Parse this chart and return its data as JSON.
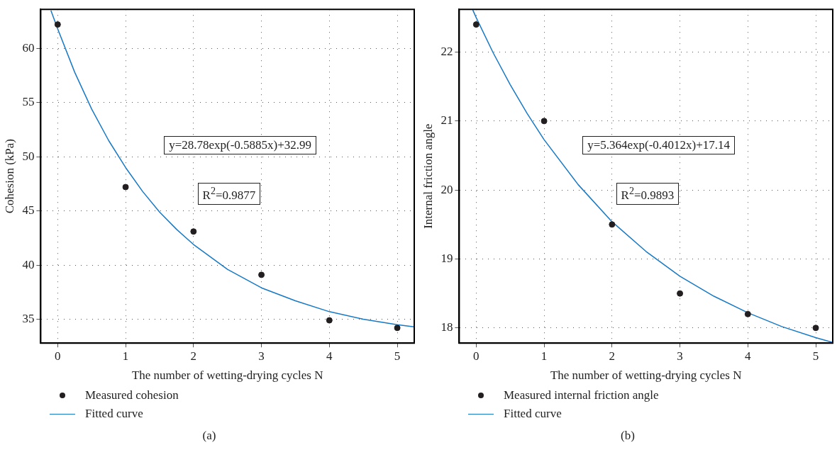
{
  "chart_data": [
    {
      "type": "scatter",
      "xlabel": "The number of wetting-drying cycles N",
      "ylabel": "Cohesion (kPa)",
      "xlim": [
        -0.25,
        5.25
      ],
      "xticks": [
        0,
        1,
        2,
        3,
        4,
        5
      ],
      "ylim": [
        32.8,
        63.6
      ],
      "yticks": [
        35,
        40,
        45,
        50,
        55,
        60
      ],
      "grid": true,
      "legend": "bottom",
      "annotations": [
        "y=28.78exp(-0.5885x)+32.99",
        "R$^{2}$=0.9877",
        "(a)"
      ],
      "series": [
        {
          "name": "Measured cohesion",
          "type": "scatter",
          "marker": "circle",
          "color": "#231f20",
          "x": [
            0,
            1,
            2,
            3,
            4,
            5
          ],
          "values": [
            62.2,
            47.2,
            43.1,
            39.1,
            34.9,
            34.2
          ]
        },
        {
          "name": "Fitted curve",
          "type": "line",
          "marker": "none",
          "color": "#1679c6",
          "x": [
            -0.1,
            0,
            0.25,
            0.5,
            0.75,
            1,
            1.25,
            1.5,
            1.75,
            2,
            2.5,
            3,
            3.5,
            4,
            4.5,
            5,
            5.25
          ],
          "values": [
            63.5,
            61.8,
            57.8,
            54.4,
            51.5,
            49.0,
            46.8,
            44.9,
            43.3,
            41.9,
            39.6,
            37.9,
            36.7,
            35.7,
            35.0,
            34.5,
            34.3
          ]
        }
      ]
    },
    {
      "type": "scatter",
      "xlabel": "The number of wetting-drying cycles N",
      "ylabel": "Internal friction angle",
      "xlim": [
        -0.25,
        5.25
      ],
      "xticks": [
        0,
        1,
        2,
        3,
        4,
        5
      ],
      "ylim": [
        17.78,
        22.62
      ],
      "yticks": [
        18,
        19,
        20,
        21,
        22
      ],
      "grid": true,
      "legend": "bottom",
      "annotations": [
        "y=5.364exp(-0.4012x)+17.14",
        "R$^{2}$=0.9893",
        "(b)"
      ],
      "series": [
        {
          "name": "Measured internal friction angle",
          "type": "scatter",
          "marker": "circle",
          "color": "#231f20",
          "x": [
            0,
            1,
            2,
            3,
            4,
            5
          ],
          "values": [
            22.4,
            21.0,
            19.5,
            18.5,
            18.2,
            18.0
          ]
        },
        {
          "name": "Fitted curve",
          "type": "line",
          "marker": "none",
          "color": "#1679c6",
          "x": [
            -0.05,
            0,
            0.25,
            0.5,
            0.75,
            1,
            1.5,
            2,
            2.5,
            3,
            3.5,
            4,
            4.5,
            5,
            5.25
          ],
          "values": [
            22.61,
            22.5,
            21.99,
            21.53,
            21.11,
            20.73,
            20.08,
            19.54,
            19.11,
            18.75,
            18.46,
            18.22,
            18.02,
            17.86,
            17.79
          ]
        }
      ]
    }
  ]
}
